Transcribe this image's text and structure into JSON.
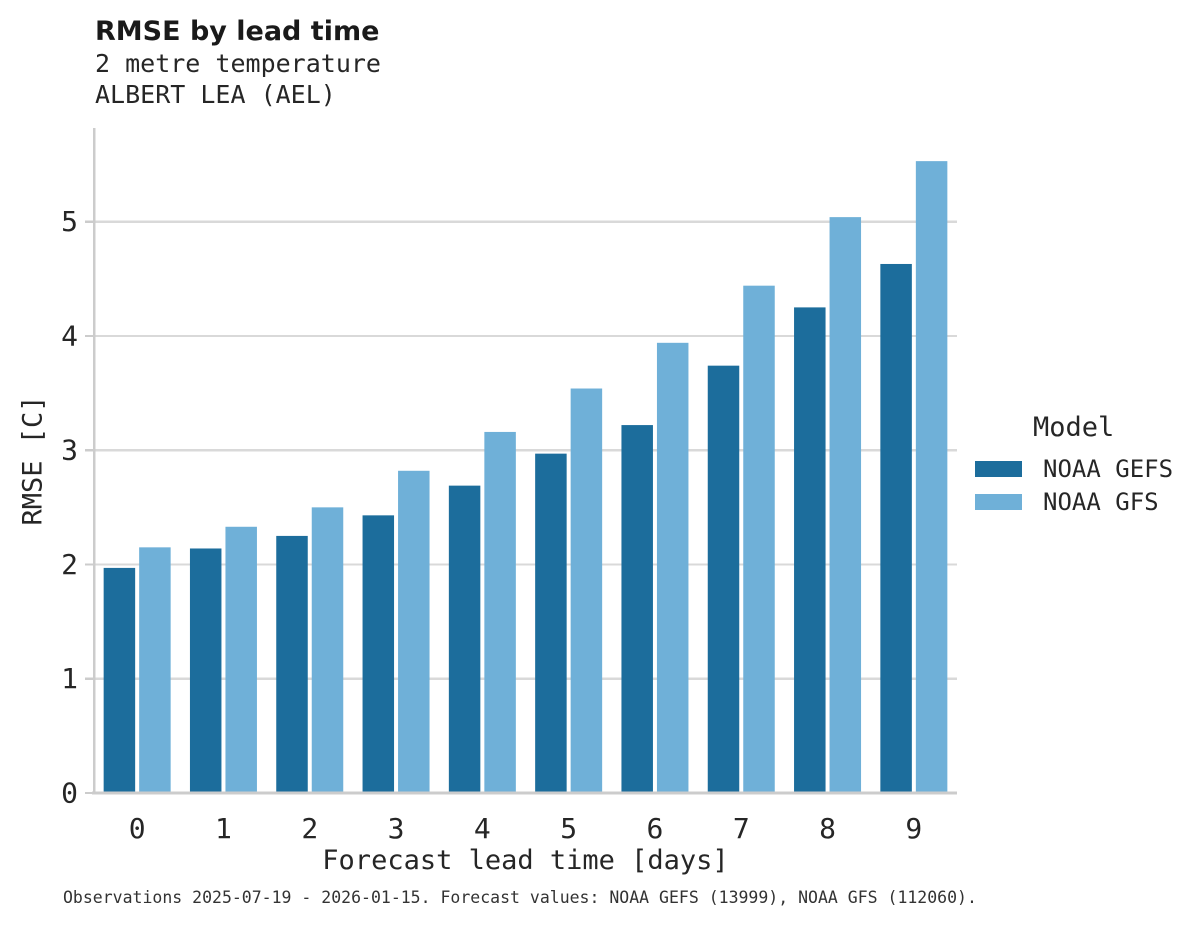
{
  "header": {
    "title": "RMSE by lead time",
    "subtitle1": "2 metre temperature",
    "subtitle2": "ALBERT LEA (AEL)"
  },
  "chart_data": {
    "type": "bar",
    "title": "RMSE by lead time",
    "subtitle": [
      "2 metre temperature",
      "ALBERT LEA (AEL)"
    ],
    "categories": [
      "0",
      "1",
      "2",
      "3",
      "4",
      "5",
      "6",
      "7",
      "8",
      "9"
    ],
    "series": [
      {
        "name": "NOAA GEFS",
        "color": "#1c6d9c",
        "values": [
          1.97,
          2.14,
          2.25,
          2.43,
          2.69,
          2.97,
          3.22,
          3.74,
          4.25,
          4.63
        ]
      },
      {
        "name": "NOAA GFS",
        "color": "#6fb0d8",
        "values": [
          2.15,
          2.33,
          2.5,
          2.82,
          3.16,
          3.54,
          3.94,
          4.44,
          5.04,
          5.53
        ]
      }
    ],
    "xlabel": "Forecast lead time [days]",
    "ylabel": "RMSE [C]",
    "y_ticks": [
      0,
      1,
      2,
      3,
      4,
      5
    ],
    "ylim": [
      0,
      5.82
    ],
    "grid": "horizontal",
    "legend": {
      "title": "Model",
      "position": "right"
    }
  },
  "colors": {
    "gridline": "#d9d9d9",
    "spine": "#cccccc",
    "text": "#262626"
  },
  "footer": {
    "note": "Observations 2025-07-19 - 2026-01-15. Forecast values: NOAA GEFS (13999), NOAA GFS (112060)."
  }
}
